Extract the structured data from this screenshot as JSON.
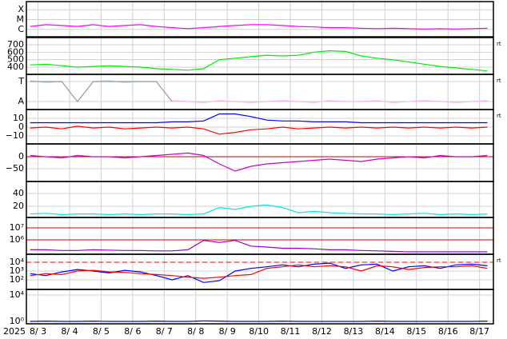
{
  "chart_data": [
    {
      "type": "line",
      "log": true,
      "ylim": [
        1.78e-07,
        0.00068
      ],
      "yticks": [
        {
          "value": 0.0001,
          "label": "X"
        },
        {
          "value": 1e-05,
          "label": "M"
        },
        {
          "value": 1e-06,
          "label": "C"
        }
      ],
      "x": [
        2.75,
        3.25,
        3.75,
        4.25,
        4.75,
        5.25,
        5.75,
        6.25,
        6.75,
        7.25,
        7.75,
        8.25,
        8.75,
        9.25,
        9.75,
        10.25,
        10.75,
        11.25,
        11.75,
        12.25,
        12.75,
        13.25,
        13.75,
        14.25,
        14.75,
        15.25,
        15.75,
        16.25,
        16.75,
        17.25
      ],
      "series": [
        {
          "color": "#ff00ff",
          "values": [
            2e-06,
            3e-06,
            2.5e-06,
            2e-06,
            3e-06,
            2e-06,
            2.5e-06,
            3e-06,
            2e-06,
            1.5e-06,
            1.2e-06,
            1.5e-06,
            2e-06,
            2.5e-06,
            3e-06,
            3e-06,
            2.5e-06,
            2e-06,
            1.8e-06,
            1.5e-06,
            1.5e-06,
            1.3e-06,
            1.2e-06,
            1.3e-06,
            1.2e-06,
            1.1e-06,
            1.2e-06,
            1.1e-06,
            1.2e-06,
            1.3e-06
          ]
        }
      ]
    },
    {
      "type": "line",
      "ylim": [
        304,
        796
      ],
      "yticks": [
        400,
        500,
        600,
        700
      ],
      "right_label": "rt",
      "x": [
        2.75,
        3.25,
        3.75,
        4.25,
        4.75,
        5.25,
        5.75,
        6.25,
        6.75,
        7.25,
        7.75,
        8.25,
        8.75,
        9.25,
        9.75,
        10.25,
        10.75,
        11.25,
        11.75,
        12.25,
        12.75,
        13.25,
        13.75,
        14.25,
        14.75,
        15.25,
        15.75,
        16.25,
        16.75,
        17.25
      ],
      "series": [
        {
          "color": "#00ee00",
          "values": [
            430,
            440,
            420,
            400,
            410,
            420,
            410,
            400,
            380,
            370,
            360,
            380,
            500,
            520,
            540,
            560,
            550,
            560,
            600,
            620,
            610,
            550,
            520,
            500,
            470,
            440,
            410,
            390,
            370,
            350
          ]
        }
      ]
    },
    {
      "type": "line",
      "ylim": [
        -1.8,
        1.72
      ],
      "yticks": [
        {
          "value": 1,
          "label": "T"
        },
        {
          "value": -1,
          "label": "A"
        }
      ],
      "right_label": "rt",
      "x": [
        2.75,
        3.25,
        3.75,
        4.25,
        4.75,
        5.25,
        5.75,
        6.25,
        6.75,
        7.25,
        7.75,
        8.25,
        8.75,
        9.25,
        9.75,
        10.25,
        10.75,
        11.25,
        11.75,
        12.25,
        12.75,
        13.25,
        13.75,
        14.25,
        14.75,
        15.25,
        15.75,
        16.25,
        16.75,
        17.25
      ],
      "series": [
        {
          "color": "#a8dcf8",
          "values": [
            1.1,
            0.9,
            1,
            null,
            1,
            1.1,
            0.9,
            1,
            1,
            null,
            null,
            null,
            null,
            null,
            null,
            null,
            null,
            null,
            null,
            null,
            null,
            null,
            null,
            null,
            null,
            null,
            null,
            null,
            null,
            null
          ]
        },
        {
          "color": "#f8b8e8",
          "values": [
            null,
            null,
            null,
            -1,
            null,
            null,
            null,
            null,
            null,
            -0.9,
            -1,
            -1.1,
            -0.9,
            -1,
            -1.1,
            -1,
            -0.9,
            -1,
            -1.1,
            -0.9,
            -1,
            -1,
            -0.9,
            -1.1,
            -1,
            -0.9,
            -1,
            -1.1,
            -1,
            -0.9
          ]
        },
        {
          "color": "#999999",
          "values": [
            1,
            1,
            1,
            -1,
            1,
            1,
            1,
            1,
            1,
            -1,
            null,
            null,
            null,
            null,
            null,
            null,
            null,
            null,
            null,
            null,
            null,
            null,
            null,
            null,
            null,
            null,
            null,
            null,
            null,
            null
          ]
        }
      ]
    },
    {
      "type": "line",
      "ylim": [
        -19.1,
        20
      ],
      "yticks": [
        10,
        0,
        {
          "value": -10,
          "label": "−10"
        }
      ],
      "right_label": "rt",
      "x": [
        2.75,
        3.25,
        3.75,
        4.25,
        4.75,
        5.25,
        5.75,
        6.25,
        6.75,
        7.25,
        7.75,
        8.25,
        8.75,
        9.25,
        9.75,
        10.25,
        10.75,
        11.25,
        11.75,
        12.25,
        12.75,
        13.25,
        13.75,
        14.25,
        14.75,
        15.25,
        15.75,
        16.25,
        16.75,
        17.25
      ],
      "series": [
        {
          "color": "#0000ff",
          "values": [
            5,
            5,
            5,
            5,
            5,
            5,
            5,
            5,
            5,
            6,
            6,
            7,
            15,
            15,
            12,
            8,
            7,
            7,
            6,
            6,
            6,
            5,
            5,
            5,
            5,
            5,
            5,
            5,
            5,
            5
          ]
        },
        {
          "color": "#ff0000",
          "values": [
            -1,
            0,
            -2,
            1,
            -1,
            0,
            -2,
            -1,
            0,
            -1,
            0,
            -2,
            -8,
            -6,
            -3,
            -2,
            0,
            -2,
            -1,
            0,
            -1,
            0,
            -1,
            0,
            -1,
            0,
            -1,
            0,
            -1,
            0
          ]
        }
      ]
    },
    {
      "type": "line",
      "ylim": [
        -103,
        53
      ],
      "yticks": [
        0,
        {
          "value": -50,
          "label": "−50"
        }
      ],
      "hlines": [
        {
          "value": 0,
          "color": "#cc0000",
          "dash": false
        }
      ],
      "x": [
        2.75,
        3.25,
        3.75,
        4.25,
        4.75,
        5.25,
        5.75,
        6.25,
        6.75,
        7.25,
        7.75,
        8.25,
        8.75,
        9.25,
        9.75,
        10.25,
        10.75,
        11.25,
        11.75,
        12.25,
        12.75,
        13.25,
        13.75,
        14.25,
        14.75,
        15.25,
        15.75,
        16.25,
        16.75,
        17.25
      ],
      "series": [
        {
          "color": "#cc00cc",
          "values": [
            5,
            0,
            -5,
            5,
            0,
            0,
            -5,
            0,
            5,
            10,
            15,
            5,
            -30,
            -60,
            -40,
            -30,
            -25,
            -20,
            -15,
            -10,
            -15,
            -20,
            -10,
            -5,
            0,
            -5,
            5,
            0,
            0,
            5
          ]
        }
      ]
    },
    {
      "type": "line",
      "ylim": [
        2.5,
        58.75
      ],
      "yticks": [
        40,
        20
      ],
      "x": [
        2.75,
        3.25,
        3.75,
        4.25,
        4.75,
        5.25,
        5.75,
        6.25,
        6.75,
        7.25,
        7.75,
        8.25,
        8.75,
        9.25,
        9.75,
        10.25,
        10.75,
        11.25,
        11.75,
        12.25,
        12.75,
        13.25,
        13.75,
        14.25,
        14.75,
        15.25,
        15.75,
        16.25,
        16.75,
        17.25
      ],
      "series": [
        {
          "color": "#00e8e8",
          "values": [
            8,
            9,
            7,
            8,
            8,
            7,
            8,
            7,
            8,
            8,
            7,
            8,
            18,
            15,
            20,
            22,
            18,
            10,
            12,
            10,
            9,
            8,
            8,
            7,
            8,
            9,
            7,
            8,
            7,
            8
          ]
        }
      ]
    },
    {
      "type": "line",
      "log": true,
      "ylim": [
        63000,
        74000000
      ],
      "yticks": [
        {
          "value": 10000000,
          "label": "10⁷"
        },
        {
          "value": 1000000,
          "label": "10⁶"
        }
      ],
      "hlines": [
        {
          "value": 10000000,
          "color": "#cc0000",
          "dash": false
        },
        {
          "value": 1000000,
          "color": "#cc0000",
          "dash": false
        }
      ],
      "x": [
        2.75,
        3.25,
        3.75,
        4.25,
        4.75,
        5.25,
        5.75,
        6.25,
        6.75,
        7.25,
        7.75,
        8.25,
        8.75,
        9.25,
        9.75,
        10.25,
        10.75,
        11.25,
        11.75,
        12.25,
        12.75,
        13.25,
        13.75,
        14.25,
        14.75,
        15.25,
        15.75,
        16.25,
        16.75,
        17.25
      ],
      "series": [
        {
          "color": "#9900cc",
          "values": [
            150000,
            150000,
            130000,
            130000,
            150000,
            140000,
            130000,
            130000,
            120000,
            120000,
            150000,
            900000,
            600000,
            900000,
            300000,
            250000,
            200000,
            200000,
            180000,
            150000,
            150000,
            130000,
            120000,
            110000,
            100000,
            100000,
            100000,
            100000,
            100000,
            100000
          ]
        }
      ]
    },
    {
      "type": "line",
      "log": true,
      "ylim": [
        8.1,
        81000
      ],
      "yticks": [
        {
          "value": 10000,
          "label": "10⁴"
        },
        {
          "value": 1000,
          "label": "10³"
        },
        {
          "value": 100,
          "label": "10²"
        }
      ],
      "right_label": "rt",
      "hlines": [
        {
          "value": 10000,
          "color": "#ff0000",
          "dash": true
        }
      ],
      "x": [
        2.75,
        3.25,
        3.75,
        4.25,
        4.75,
        5.25,
        5.75,
        6.25,
        6.75,
        7.25,
        7.75,
        8.25,
        8.75,
        9.25,
        9.75,
        10.25,
        10.75,
        11.25,
        11.75,
        12.25,
        12.75,
        13.25,
        13.75,
        14.25,
        14.75,
        15.25,
        15.75,
        16.25,
        16.75,
        17.25
      ],
      "series": [
        {
          "color": "#0000ff",
          "values": [
            500,
            300,
            800,
            1500,
            1000,
            600,
            1200,
            800,
            300,
            100,
            300,
            50,
            80,
            1000,
            2000,
            3000,
            5000,
            3000,
            6000,
            8000,
            2000,
            5000,
            6000,
            1000,
            3000,
            4000,
            2000,
            5000,
            6000,
            4000
          ]
        },
        {
          "color": "#ff0000",
          "values": [
            300,
            500,
            400,
            1000,
            1200,
            800,
            700,
            500,
            400,
            300,
            200,
            150,
            200,
            300,
            400,
            2000,
            3000,
            5000,
            3000,
            4000,
            3000,
            1000,
            4000,
            3000,
            1500,
            2500,
            3000,
            3000,
            4000,
            2000
          ]
        }
      ]
    },
    {
      "type": "line",
      "log": true,
      "ylim": [
        0.43,
        70000
      ],
      "yticks": [
        {
          "value": 10000,
          "label": "10⁴"
        },
        {
          "value": 1,
          "label": "10⁰"
        }
      ],
      "xlim": [
        2.63,
        17.44
      ],
      "year_label": "2025",
      "xticks": [
        {
          "value": 3,
          "label": "8/ 3"
        },
        {
          "value": 4,
          "label": "8/ 4"
        },
        {
          "value": 5,
          "label": "8/ 5"
        },
        {
          "value": 6,
          "label": "8/ 6"
        },
        {
          "value": 7,
          "label": "8/ 7"
        },
        {
          "value": 8,
          "label": "8/ 8"
        },
        {
          "value": 9,
          "label": "8/ 9"
        },
        {
          "value": 10,
          "label": "8/10"
        },
        {
          "value": 11,
          "label": "8/11"
        },
        {
          "value": 12,
          "label": "8/12"
        },
        {
          "value": 13,
          "label": "8/13"
        },
        {
          "value": 14,
          "label": "8/14"
        },
        {
          "value": 15,
          "label": "8/15"
        },
        {
          "value": 16,
          "label": "8/16"
        },
        {
          "value": 17,
          "label": "8/17"
        }
      ],
      "x": [
        2.75,
        3.25,
        3.75,
        4.25,
        4.75,
        5.25,
        5.75,
        6.25,
        6.75,
        7.25,
        7.75,
        8.25,
        8.75,
        9.25,
        9.75,
        10.25,
        10.75,
        11.25,
        11.75,
        12.25,
        12.75,
        13.25,
        13.75,
        14.25,
        14.75,
        15.25,
        15.75,
        16.25,
        16.75,
        17.25
      ],
      "series": [
        {
          "color": "#0000ff",
          "values": [
            1,
            1.1,
            1,
            1,
            1.1,
            1,
            1,
            1,
            1.1,
            1,
            1,
            1.2,
            1.1,
            1,
            1,
            1,
            1.1,
            1,
            1,
            1,
            1,
            1,
            1.1,
            1,
            1,
            1,
            1,
            1,
            1,
            1.1
          ]
        }
      ]
    }
  ]
}
